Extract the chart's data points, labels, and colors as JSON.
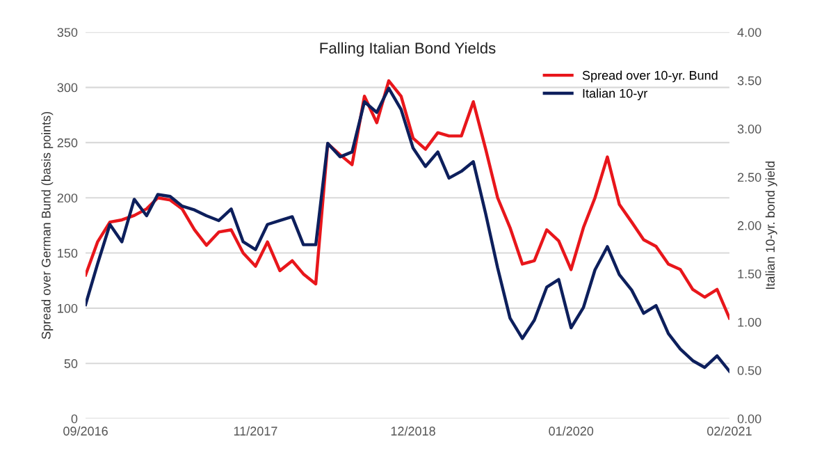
{
  "chart_data": {
    "type": "line",
    "title": "Falling Italian Bond Yields",
    "ylabel": "Spread over German Bund (basis points)",
    "y2label": "Italian 10-yr. bond yield",
    "x": [
      "2016-09",
      "2016-10",
      "2016-11",
      "2016-12",
      "2017-01",
      "2017-02",
      "2017-03",
      "2017-04",
      "2017-05",
      "2017-06",
      "2017-07",
      "2017-08",
      "2017-09",
      "2017-10",
      "2017-11",
      "2017-12",
      "2018-01",
      "2018-02",
      "2018-03",
      "2018-04",
      "2018-05",
      "2018-06",
      "2018-07",
      "2018-08",
      "2018-09",
      "2018-10",
      "2018-11",
      "2018-12",
      "2019-01",
      "2019-02",
      "2019-03",
      "2019-04",
      "2019-05",
      "2019-06",
      "2019-07",
      "2019-08",
      "2019-09",
      "2019-10",
      "2019-11",
      "2019-12",
      "2020-01",
      "2020-02",
      "2020-03",
      "2020-04",
      "2020-05",
      "2020-06",
      "2020-07",
      "2020-08",
      "2020-09",
      "2020-10",
      "2020-11",
      "2020-12",
      "2021-01",
      "2021-02"
    ],
    "series": [
      {
        "name": "Spread over 10-yr. Bund",
        "color": "#e8161b",
        "values": [
          130,
          160,
          178,
          180,
          184,
          190,
          200,
          198,
          190,
          171,
          157,
          169,
          171,
          150,
          138,
          160,
          134,
          143,
          131,
          122,
          249,
          239,
          230,
          292,
          268,
          306,
          292,
          254,
          244,
          259,
          256,
          256,
          287,
          244,
          200,
          173,
          140,
          143,
          171,
          161,
          135,
          173,
          200,
          237,
          194,
          178,
          162,
          156,
          140,
          135,
          117,
          110,
          117,
          91
        ]
      },
      {
        "name": "Italian 10-yr",
        "color": "#0d1f5c",
        "axis": "y2",
        "values": [
          1.18,
          1.6,
          2.01,
          1.83,
          2.27,
          2.1,
          2.32,
          2.3,
          2.2,
          2.16,
          2.1,
          2.05,
          2.17,
          1.83,
          1.75,
          2.01,
          2.05,
          2.09,
          1.8,
          1.8,
          2.85,
          2.71,
          2.76,
          3.28,
          3.17,
          3.42,
          3.2,
          2.8,
          2.61,
          2.76,
          2.49,
          2.56,
          2.66,
          2.12,
          1.56,
          1.04,
          0.83,
          1.02,
          1.36,
          1.44,
          0.94,
          1.15,
          1.54,
          1.78,
          1.49,
          1.33,
          1.09,
          1.17,
          0.88,
          0.72,
          0.6,
          0.53,
          0.65,
          0.49
        ]
      }
    ],
    "xlim": [
      "2016-09",
      "2021-02"
    ],
    "xticks": [
      {
        "value": "2016-09",
        "label": "09/2016"
      },
      {
        "value": "2017-11",
        "label": "11/2017"
      },
      {
        "value": "2018-12",
        "label": "12/2018"
      },
      {
        "value": "2020-01",
        "label": "01/2020"
      },
      {
        "value": "2021-02",
        "label": "02/2021"
      }
    ],
    "ylim": [
      0,
      350
    ],
    "yticks": [
      0,
      50,
      100,
      150,
      200,
      250,
      300,
      350
    ],
    "y2lim": [
      0,
      4
    ],
    "y2ticks": [
      {
        "value": 0,
        "label": "0.00"
      },
      {
        "value": 0.5,
        "label": "0.50"
      },
      {
        "value": 1,
        "label": "1.00"
      },
      {
        "value": 1.5,
        "label": "1.50"
      },
      {
        "value": 2,
        "label": "2.00"
      },
      {
        "value": 2.5,
        "label": "2.50"
      },
      {
        "value": 3,
        "label": "3.00"
      },
      {
        "value": 3.5,
        "label": "3.50"
      },
      {
        "value": 4,
        "label": "4.00"
      }
    ],
    "grid": "y",
    "legend": "top right",
    "line_style": "solid"
  }
}
